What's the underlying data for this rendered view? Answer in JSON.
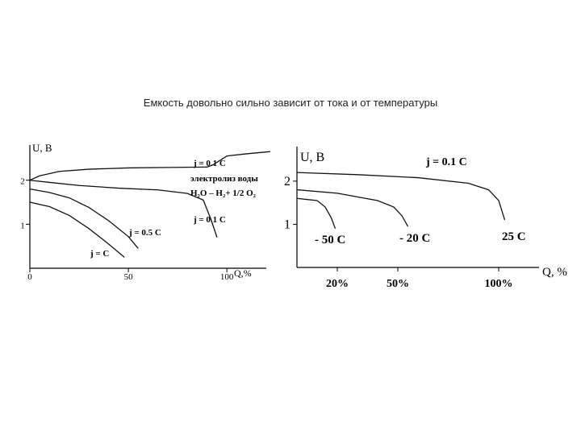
{
  "slide": {
    "title": "Емкость довольно сильно зависит от тока и от температуры"
  },
  "chart_data": [
    {
      "type": "line",
      "xlabel": "Q,%",
      "ylabel": "U, B",
      "x_ticks": [
        "0",
        "50",
        "100"
      ],
      "y_ticks": [
        "1",
        "2"
      ],
      "xlim": [
        0,
        120
      ],
      "ylim": [
        0,
        2.8
      ],
      "annotations": [
        "j = 0.1 C",
        "электролиз воды",
        "H₂O – H₂+ 1/2 O₂"
      ],
      "series": [
        {
          "name": "j = 0.1 C",
          "x": [
            0,
            5,
            15,
            30,
            50,
            70,
            90,
            93,
            100,
            110,
            122
          ],
          "y": [
            2.0,
            2.1,
            2.2,
            2.25,
            2.28,
            2.29,
            2.3,
            2.35,
            2.55,
            2.6,
            2.65
          ]
        },
        {
          "name": "j = 0.1 C",
          "x": [
            0,
            10,
            25,
            45,
            65,
            80,
            88,
            92,
            95
          ],
          "y": [
            2.0,
            1.95,
            1.88,
            1.82,
            1.78,
            1.7,
            1.55,
            1.1,
            0.7
          ]
        },
        {
          "name": "j = 0.5 C",
          "x": [
            0,
            10,
            20,
            30,
            40,
            50,
            55
          ],
          "y": [
            1.8,
            1.72,
            1.6,
            1.38,
            1.08,
            0.72,
            0.45
          ]
        },
        {
          "name": "j = C",
          "x": [
            0,
            10,
            20,
            30,
            40,
            48
          ],
          "y": [
            1.5,
            1.4,
            1.2,
            0.9,
            0.55,
            0.25
          ]
        }
      ]
    },
    {
      "type": "line",
      "xlabel": "Q, %",
      "ylabel": "U, B",
      "x_ticks": [
        "20%",
        "50%",
        "100%"
      ],
      "y_ticks": [
        "1",
        "2"
      ],
      "xlim": [
        0,
        120
      ],
      "ylim": [
        0,
        2.8
      ],
      "annotations": [
        "j = 0.1 C"
      ],
      "series": [
        {
          "name": "- 50 C",
          "x": [
            0,
            10,
            14,
            17,
            19
          ],
          "y": [
            1.6,
            1.55,
            1.4,
            1.15,
            0.9
          ]
        },
        {
          "name": "- 20 C",
          "x": [
            0,
            20,
            40,
            48,
            52,
            55
          ],
          "y": [
            1.8,
            1.72,
            1.55,
            1.4,
            1.2,
            0.95
          ]
        },
        {
          "name": "25 C",
          "x": [
            0,
            30,
            60,
            85,
            95,
            100,
            103
          ],
          "y": [
            2.2,
            2.15,
            2.08,
            1.95,
            1.8,
            1.55,
            1.1
          ]
        }
      ]
    }
  ]
}
